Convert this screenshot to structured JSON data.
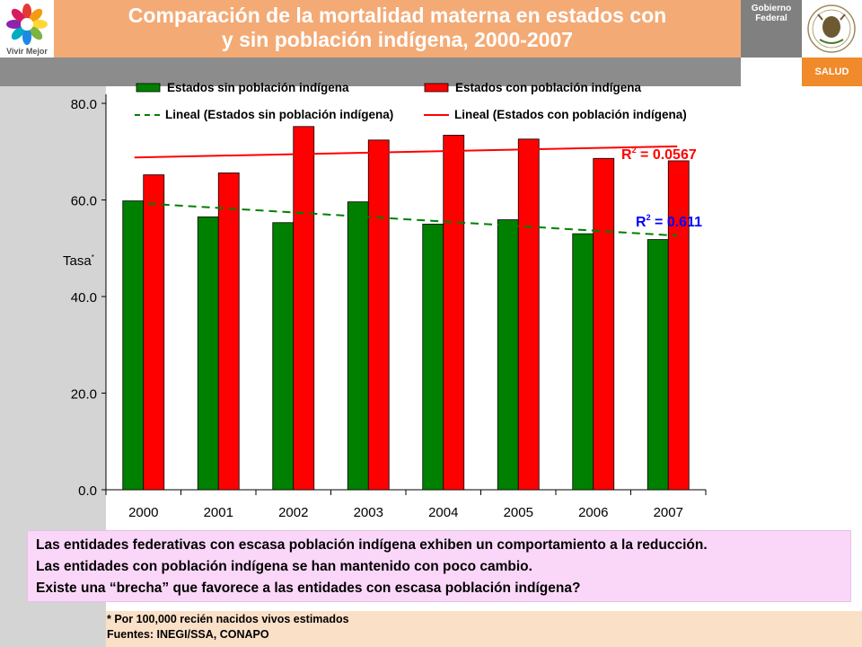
{
  "header": {
    "logo_text": "Vivir Mejor",
    "title_line1": "Comparación de la mortalidad materna en estados con",
    "title_line2": "y sin población indígena, 2000-2007",
    "gov_line1": "Gobierno",
    "gov_line2": "Federal",
    "salud_label": "SALUD"
  },
  "chart_data": {
    "type": "bar",
    "categories": [
      "2000",
      "2001",
      "2002",
      "2003",
      "2004",
      "2005",
      "2006",
      "2007"
    ],
    "series": [
      {
        "name": "Estados sin población indígena",
        "color": "#008000",
        "values": [
          59.8,
          56.5,
          55.3,
          59.6,
          55.0,
          55.9,
          53.0,
          51.8
        ]
      },
      {
        "name": "Estados con población indígena",
        "color": "#ff0000",
        "values": [
          65.2,
          65.6,
          75.2,
          72.4,
          73.4,
          72.6,
          68.6,
          68.1
        ]
      }
    ],
    "trendlines": [
      {
        "name": "Lineal (Estados sin población indígena)",
        "color": "#008000",
        "style": "dashed",
        "start": 59.4,
        "end": 52.6,
        "r2_label": "R",
        "r2_exp": "2",
        "r2_value": " = 0.611",
        "r2_color": "#0000ff"
      },
      {
        "name": "Lineal (Estados con población indígena)",
        "color": "#ff0000",
        "style": "solid",
        "start": 68.8,
        "end": 71.1,
        "r2_label": "R",
        "r2_exp": "2",
        "r2_value": " = 0.0567",
        "r2_color": "#ff0000"
      }
    ],
    "ylabel": "Tasa",
    "ylabel_sup": "*",
    "ylim": [
      0,
      80
    ],
    "yticks": [
      "0.0",
      "20.0",
      "40.0",
      "60.0",
      "80.0"
    ],
    "legend_placement": "top"
  },
  "notes": [
    "Las entidades federativas con escasa población indígena exhiben un comportamiento a la reducción.",
    "Las entidades con población indígena se han mantenido con poco cambio.",
    "Existe una “brecha” que favorece a las entidades con escasa población indígena?"
  ],
  "footnote": {
    "line1": "* Por 100,000 recién nacidos vivos estimados",
    "line2": "Fuentes: INEGI/SSA, CONAPO"
  }
}
